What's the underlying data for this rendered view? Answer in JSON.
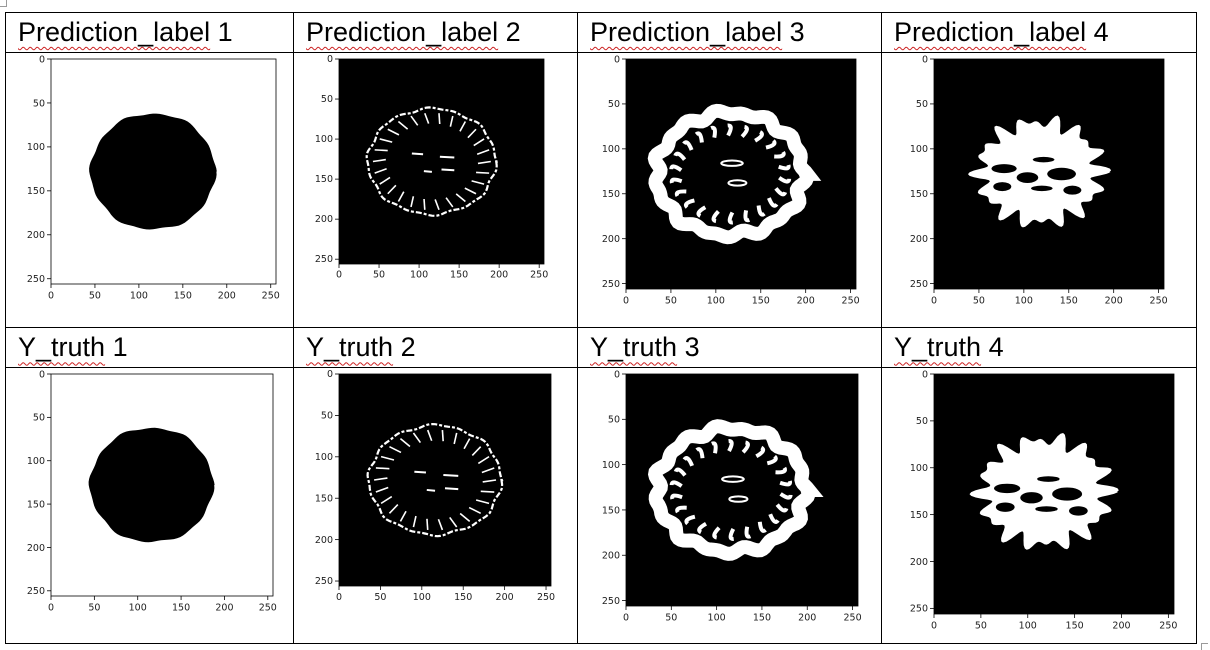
{
  "headers_top": [
    {
      "text": "Prediction_label",
      "num": "1"
    },
    {
      "text": "Prediction_label",
      "num": "2"
    },
    {
      "text": "Prediction_label",
      "num": "3"
    },
    {
      "text": "Prediction_label",
      "num": "4"
    }
  ],
  "headers_bottom": [
    {
      "text": "Y_truth",
      "num": "1"
    },
    {
      "text": "Y_truth",
      "num": "2"
    },
    {
      "text": "Y_truth",
      "num": "3"
    },
    {
      "text": "Y_truth",
      "num": "4"
    }
  ],
  "axis_ticks": [
    "0",
    "50",
    "100",
    "150",
    "200",
    "250"
  ],
  "panels": [
    {
      "title": "Prediction_label 1",
      "image": "brain mask (black on white)"
    },
    {
      "title": "Prediction_label 2",
      "image": "cortex boundary segmentation"
    },
    {
      "title": "Prediction_label 3",
      "image": "grey matter segmentation"
    },
    {
      "title": "Prediction_label 4",
      "image": "white matter segmentation"
    },
    {
      "title": "Y_truth 1",
      "image": "brain mask (black on white)"
    },
    {
      "title": "Y_truth 2",
      "image": "cortex boundary segmentation"
    },
    {
      "title": "Y_truth 3",
      "image": "grey matter segmentation"
    },
    {
      "title": "Y_truth 4",
      "image": "white matter segmentation"
    }
  ]
}
